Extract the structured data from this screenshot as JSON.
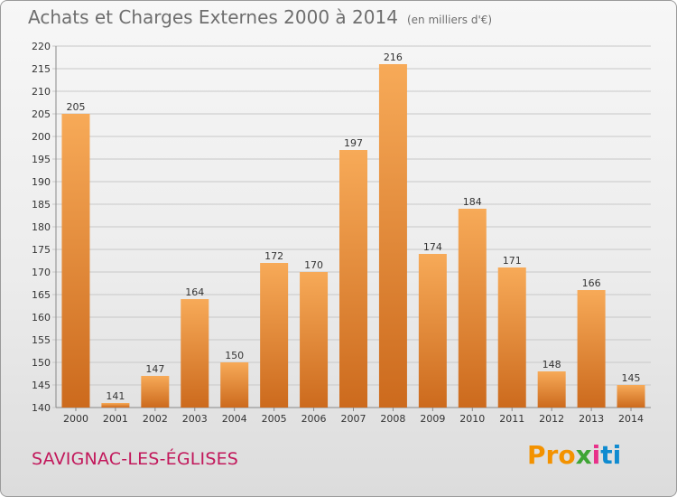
{
  "title": "Achats et Charges Externes 2000 à 2014",
  "subtitle": "(en milliers d'€)",
  "commune": "SAVIGNAC-LES-ÉGLISES",
  "logo": {
    "p1": "Pro",
    "p2": "x",
    "p3": "i",
    "p4": "ti"
  },
  "colors": {
    "bar_light": "#f7aa58",
    "bar_dark": "#cc6a1d",
    "grid": "#c8c8c8",
    "accent": "#c2185b"
  },
  "chart_data": {
    "type": "bar",
    "title": "Achats et Charges Externes 2000 à 2014",
    "subtitle": "(en milliers d'€)",
    "xlabel": "",
    "ylabel": "",
    "categories": [
      "2000",
      "2001",
      "2002",
      "2003",
      "2004",
      "2005",
      "2006",
      "2007",
      "2008",
      "2009",
      "2010",
      "2011",
      "2012",
      "2013",
      "2014"
    ],
    "values": [
      205,
      141,
      147,
      164,
      150,
      172,
      170,
      197,
      216,
      174,
      184,
      171,
      148,
      166,
      145
    ],
    "ylim": [
      140,
      220
    ],
    "yticks": [
      140,
      145,
      150,
      155,
      160,
      165,
      170,
      175,
      180,
      185,
      190,
      195,
      200,
      205,
      210,
      215,
      220
    ],
    "grid": true
  }
}
